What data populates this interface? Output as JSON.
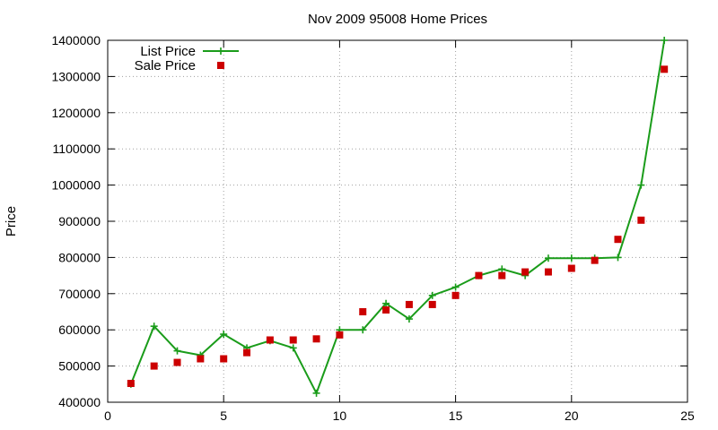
{
  "chart_data": {
    "type": "line",
    "title": "Nov 2009 95008 Home Prices",
    "xlabel": "",
    "ylabel": "Price",
    "xlim": [
      0,
      25
    ],
    "ylim": [
      400000,
      1400000
    ],
    "x_ticks": [
      0,
      5,
      10,
      15,
      20,
      25
    ],
    "y_ticks": [
      400000,
      500000,
      600000,
      700000,
      800000,
      900000,
      1000000,
      1100000,
      1200000,
      1300000,
      1400000
    ],
    "grid": true,
    "legend_position": "top-left",
    "series": [
      {
        "name": "List Price",
        "kind": "line-with-plus-markers",
        "color": "#1a9c1a",
        "x": [
          1,
          2,
          3,
          4,
          5,
          6,
          7,
          8,
          9,
          10,
          11,
          12,
          13,
          14,
          15,
          16,
          17,
          18,
          19,
          20,
          21,
          22,
          23,
          24
        ],
        "values": [
          450000,
          610000,
          542000,
          530000,
          588000,
          550000,
          570000,
          550000,
          425000,
          600000,
          600000,
          673000,
          630000,
          695000,
          718000,
          750000,
          768000,
          750000,
          798000,
          798000,
          798000,
          800000,
          1000000,
          1400000
        ]
      },
      {
        "name": "Sale Price",
        "kind": "square-markers",
        "color": "#cc0000",
        "x": [
          1,
          2,
          3,
          4,
          5,
          6,
          7,
          8,
          9,
          10,
          11,
          12,
          13,
          14,
          15,
          16,
          17,
          18,
          19,
          20,
          21,
          22,
          23,
          24
        ],
        "values": [
          452000,
          500000,
          510000,
          520000,
          520000,
          537000,
          572000,
          572000,
          575000,
          586000,
          650000,
          655000,
          670000,
          670000,
          695000,
          750000,
          750000,
          760000,
          760000,
          770000,
          792000,
          850000,
          903000,
          1320000
        ]
      }
    ]
  }
}
